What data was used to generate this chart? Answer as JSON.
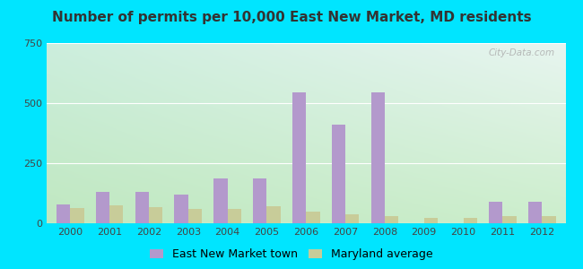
{
  "title": "Number of permits per 10,000 East New Market, MD residents",
  "years": [
    2000,
    2001,
    2002,
    2003,
    2004,
    2005,
    2006,
    2007,
    2008,
    2009,
    2010,
    2011,
    2012
  ],
  "town_values": [
    80,
    130,
    130,
    120,
    185,
    185,
    545,
    410,
    545,
    0,
    0,
    90,
    90
  ],
  "md_values": [
    65,
    75,
    68,
    60,
    60,
    70,
    48,
    38,
    28,
    22,
    22,
    28,
    30
  ],
  "town_color": "#b399cc",
  "md_color": "#c8cc99",
  "ylim": [
    0,
    750
  ],
  "yticks": [
    0,
    250,
    500,
    750
  ],
  "bar_width": 0.35,
  "bg_top_left": "#cceedd",
  "bg_top_right": "#e8f5f0",
  "bg_bottom_left": "#c8e8c8",
  "bg_bottom_right": "#d8eedd",
  "outer_bg": "#00e5ff",
  "legend_town": "East New Market town",
  "legend_md": "Maryland average",
  "watermark": "City-Data.com",
  "title_fontsize": 11,
  "tick_fontsize": 8,
  "legend_fontsize": 9,
  "grid_color": "#ffffff"
}
